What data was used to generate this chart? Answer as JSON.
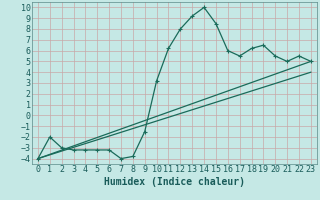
{
  "xlabel": "Humidex (Indice chaleur)",
  "background_color": "#c5e8e5",
  "grid_color": "#c8a8a8",
  "line_color": "#1a6b5a",
  "xlim": [
    -0.5,
    23.5
  ],
  "ylim": [
    -4.5,
    10.5
  ],
  "xticks": [
    0,
    1,
    2,
    3,
    4,
    5,
    6,
    7,
    8,
    9,
    10,
    11,
    12,
    13,
    14,
    15,
    16,
    17,
    18,
    19,
    20,
    21,
    22,
    23
  ],
  "yticks": [
    -4,
    -3,
    -2,
    -1,
    0,
    1,
    2,
    3,
    4,
    5,
    6,
    7,
    8,
    9,
    10
  ],
  "curve1_x": [
    0,
    1,
    2,
    3,
    4,
    5,
    6,
    7,
    8,
    9,
    10,
    11,
    12,
    13,
    14,
    15,
    16,
    17,
    18,
    19,
    20,
    21,
    22,
    23
  ],
  "curve1_y": [
    -4,
    -2,
    -3,
    -3.2,
    -3.2,
    -3.2,
    -3.2,
    -4,
    -3.8,
    -1.5,
    3.2,
    6.2,
    8.0,
    9.2,
    10.0,
    8.5,
    6.0,
    5.5,
    6.2,
    6.5,
    5.5,
    5.0,
    5.5,
    5.0
  ],
  "curve2_x": [
    0,
    23
  ],
  "curve2_y": [
    -4,
    5.0
  ],
  "curve3_x": [
    0,
    23
  ],
  "curve3_y": [
    -4,
    4.0
  ],
  "xlabel_fontsize": 7,
  "tick_fontsize": 6
}
